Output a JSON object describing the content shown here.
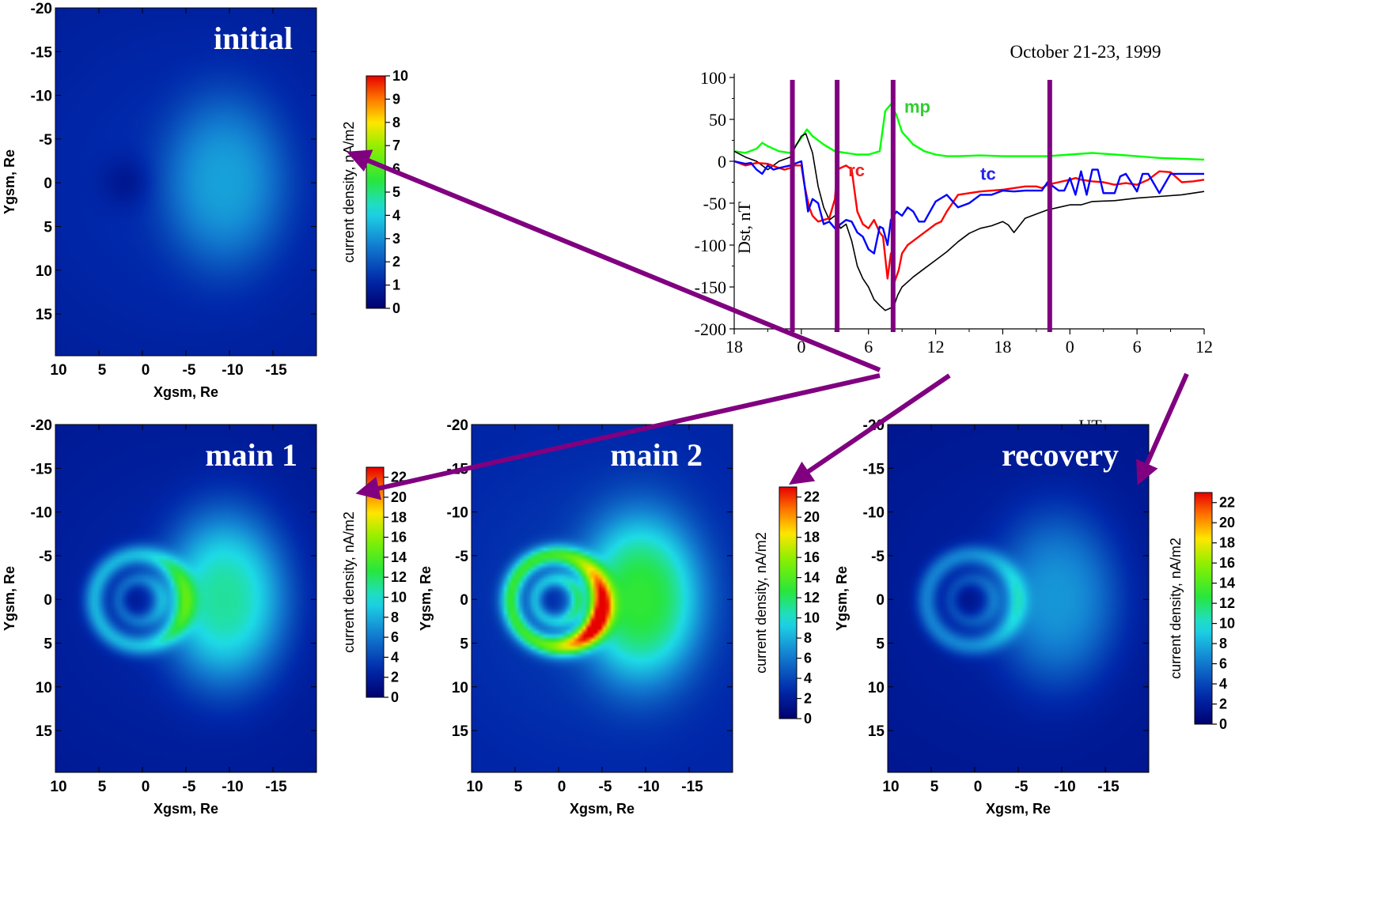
{
  "chart_data": [
    {
      "type": "heatmap",
      "title": "initial",
      "xlabel": "Xgsm, Re",
      "ylabel": "Ygsm, Re",
      "x_ticks": [
        "10",
        "5",
        "0",
        "-5",
        "-10",
        "-15"
      ],
      "y_ticks": [
        "-20",
        "-15",
        "-10",
        "-5",
        "0",
        "5",
        "10",
        "15"
      ],
      "xlim": [
        10,
        -20
      ],
      "ylim": [
        -20,
        20
      ],
      "colorbar": {
        "label": "current density, nA/m2",
        "min": 0,
        "max": 10,
        "ticks": [
          "10",
          "9",
          "8",
          "7",
          "6",
          "5",
          "4",
          "3",
          "2",
          "1",
          "0"
        ]
      },
      "features": {
        "night_blob_intensity": 2.0,
        "day_blob_intensity": 0.6,
        "background": 1.3,
        "ring_intensity": 0,
        "hotspot_intensity": 0
      }
    },
    {
      "type": "heatmap",
      "title": "main 1",
      "xlabel": "Xgsm, Re",
      "ylabel": "Ygsm, Re",
      "x_ticks": [
        "10",
        "5",
        "0",
        "-5",
        "-10",
        "-15"
      ],
      "y_ticks": [
        "-20",
        "-15",
        "-10",
        "-5",
        "0",
        "5",
        "10",
        "15"
      ],
      "xlim": [
        10,
        -20
      ],
      "ylim": [
        -20,
        20
      ],
      "colorbar": {
        "label": "current density, nA/m2",
        "min": 0,
        "max": 23,
        "ticks": [
          "22",
          "20",
          "18",
          "16",
          "14",
          "12",
          "10",
          "8",
          "6",
          "4",
          "2",
          "0"
        ]
      },
      "features": {
        "night_blob_intensity": 8.5,
        "day_blob_intensity": 0.5,
        "background": 2.5,
        "ring_intensity": 6,
        "hotspot_intensity": 0
      }
    },
    {
      "type": "heatmap",
      "title": "main 2",
      "xlabel": "Xgsm, Re",
      "ylabel": "Ygsm, Re",
      "x_ticks": [
        "10",
        "5",
        "0",
        "-5",
        "-10",
        "-15"
      ],
      "y_ticks": [
        "-20",
        "-15",
        "-10",
        "-5",
        "0",
        "5",
        "10",
        "15"
      ],
      "xlim": [
        10,
        -20
      ],
      "ylim": [
        -20,
        20
      ],
      "colorbar": {
        "label": "current density, nA/m2",
        "min": 0,
        "max": 23,
        "ticks": [
          "22",
          "20",
          "18",
          "16",
          "14",
          "12",
          "10",
          "8",
          "6",
          "4",
          "2",
          "0"
        ]
      },
      "features": {
        "night_blob_intensity": 9.5,
        "day_blob_intensity": 0.5,
        "background": 3.5,
        "ring_intensity": 10,
        "hotspot_intensity": 8
      }
    },
    {
      "type": "heatmap",
      "title": "recovery",
      "xlabel": "Xgsm, Re",
      "ylabel": "Ygsm, Re",
      "x_ticks": [
        "10",
        "5",
        "0",
        "-5",
        "-10",
        "-15"
      ],
      "y_ticks": [
        "-20",
        "-15",
        "-10",
        "-5",
        "0",
        "5",
        "10",
        "15"
      ],
      "xlim": [
        10,
        -20
      ],
      "ylim": [
        -20,
        20
      ],
      "colorbar": {
        "label": "current density, nA/m2",
        "min": 0,
        "max": 23,
        "ticks": [
          "22",
          "20",
          "18",
          "16",
          "14",
          "12",
          "10",
          "8",
          "6",
          "4",
          "2",
          "0"
        ]
      },
      "features": {
        "night_blob_intensity": 5.0,
        "day_blob_intensity": 0.5,
        "background": 2.2,
        "ring_intensity": 4.5,
        "hotspot_intensity": 0
      }
    },
    {
      "type": "line",
      "title": "October 21-23, 1999",
      "xlabel": "UT",
      "ylabel": "Dst, nT",
      "xlim": [
        18,
        60
      ],
      "ylim": [
        -200,
        100
      ],
      "x_tick_values": [
        18,
        24,
        30,
        36,
        42,
        48,
        54,
        60
      ],
      "x_tick_labels": [
        "18",
        "0",
        "6",
        "12",
        "18",
        "0",
        "6",
        "12"
      ],
      "y_ticks": [
        100,
        50,
        0,
        -50,
        -100,
        -150,
        -200
      ],
      "phase_markers": [
        23.2,
        27.2,
        32.2,
        46.2
      ],
      "series": [
        {
          "name": "",
          "color": "#000000",
          "x": [
            18,
            19,
            20,
            21,
            22,
            23,
            23.5,
            24,
            24.4,
            25,
            25.5,
            26,
            26.5,
            27,
            27.5,
            28,
            28.5,
            29,
            29.5,
            30,
            30.5,
            31,
            31.5,
            32,
            32.3,
            32.6,
            33,
            34,
            35,
            36,
            37,
            38,
            39,
            40,
            41,
            42,
            42.5,
            43,
            44,
            45,
            46,
            47,
            48,
            49,
            50,
            52,
            54,
            56,
            58,
            60
          ],
          "values": [
            12,
            5,
            0,
            -10,
            0,
            5,
            18,
            30,
            33,
            10,
            -30,
            -55,
            -70,
            -65,
            -80,
            -75,
            -95,
            -125,
            -140,
            -150,
            -165,
            -172,
            -178,
            -175,
            -172,
            -160,
            -150,
            -138,
            -128,
            -118,
            -108,
            -96,
            -86,
            -80,
            -77,
            -72,
            -76,
            -85,
            -68,
            -63,
            -58,
            -55,
            -52,
            -52,
            -48,
            -47,
            -44,
            -42,
            -40,
            -36
          ]
        },
        {
          "name": "rc",
          "color": "#ff0000",
          "x": [
            18,
            19,
            20,
            21,
            22,
            22.5,
            23,
            23.2,
            23.6,
            24,
            24.3,
            24.7,
            25,
            25.5,
            26,
            26.5,
            27,
            27.2,
            27.5,
            28,
            28.5,
            29,
            29.5,
            30,
            30.5,
            31,
            31.3,
            31.7,
            32,
            32.3,
            32.7,
            33,
            33.5,
            34,
            35,
            36,
            36.5,
            37,
            37.5,
            38,
            39,
            40,
            41,
            42,
            43,
            44,
            45,
            45.5,
            46,
            47,
            48,
            48.5,
            49,
            50,
            51,
            52,
            53,
            54,
            55,
            56,
            57,
            58,
            59,
            60
          ],
          "values": [
            0,
            -5,
            -2,
            -3,
            -8,
            -10,
            -8,
            -5,
            -5,
            -5,
            -30,
            -55,
            -65,
            -72,
            -70,
            -68,
            -45,
            -10,
            -8,
            -5,
            -10,
            -60,
            -75,
            -80,
            -70,
            -85,
            -90,
            -140,
            -110,
            -145,
            -130,
            -110,
            -100,
            -95,
            -85,
            -75,
            -72,
            -60,
            -50,
            -40,
            -38,
            -36,
            -35,
            -34,
            -32,
            -30,
            -30,
            -32,
            -28,
            -25,
            -22,
            -20,
            -22,
            -24,
            -25,
            -28,
            -26,
            -28,
            -22,
            -12,
            -13,
            -25,
            -24,
            -22
          ]
        },
        {
          "name": "tc",
          "color": "#0000ff",
          "x": [
            18,
            19,
            19.5,
            20,
            20.5,
            21,
            21.5,
            22,
            23,
            24,
            24.3,
            24.6,
            25,
            25.5,
            26,
            26.5,
            27,
            27.5,
            28,
            28.5,
            29,
            29.5,
            30,
            30.5,
            31,
            31.3,
            31.7,
            32,
            32.5,
            33,
            33.5,
            34,
            34.5,
            35,
            35.5,
            36,
            37,
            38,
            39,
            40,
            41,
            42,
            43,
            44,
            45,
            45.5,
            46,
            47,
            47.5,
            48,
            48.5,
            49,
            49.5,
            50,
            50.5,
            51,
            52,
            52.5,
            53,
            54,
            54.5,
            55,
            56,
            57,
            58,
            59,
            60
          ],
          "values": [
            0,
            -3,
            -2,
            -10,
            -15,
            -5,
            -10,
            -8,
            -5,
            0,
            -30,
            -60,
            -45,
            -50,
            -75,
            -72,
            -80,
            -75,
            -70,
            -72,
            -85,
            -90,
            -105,
            -110,
            -78,
            -80,
            -100,
            -70,
            -60,
            -65,
            -55,
            -60,
            -72,
            -72,
            -60,
            -48,
            -40,
            -55,
            -50,
            -40,
            -40,
            -35,
            -36,
            -35,
            -35,
            -35,
            -25,
            -35,
            -35,
            -20,
            -40,
            -12,
            -40,
            -10,
            -10,
            -38,
            -38,
            -18,
            -15,
            -36,
            -15,
            -15,
            -38,
            -15,
            -15,
            -15,
            -15
          ]
        },
        {
          "name": "mp",
          "color": "#00ff00",
          "x": [
            18,
            19,
            20,
            20.5,
            21,
            22,
            23,
            24,
            24.5,
            25,
            26,
            27,
            28,
            29,
            30,
            31,
            31.5,
            32,
            32.5,
            33,
            34,
            35,
            36,
            37,
            38,
            40,
            42,
            44,
            46,
            48,
            50,
            52,
            54,
            56,
            58,
            60
          ],
          "values": [
            12,
            10,
            15,
            22,
            18,
            12,
            10,
            28,
            38,
            30,
            20,
            12,
            10,
            8,
            8,
            12,
            60,
            68,
            55,
            35,
            20,
            12,
            8,
            6,
            6,
            7,
            6,
            6,
            6,
            8,
            10,
            8,
            6,
            4,
            3,
            2
          ]
        }
      ],
      "annotations": [
        {
          "text": "mp",
          "x": 33.2,
          "y": 58,
          "color": "#33cc33"
        },
        {
          "text": "rc",
          "x": 28.2,
          "y": -18,
          "color": "#ee2222"
        },
        {
          "text": "tc",
          "x": 40.0,
          "y": -22,
          "color": "#2222ee"
        }
      ]
    }
  ]
}
